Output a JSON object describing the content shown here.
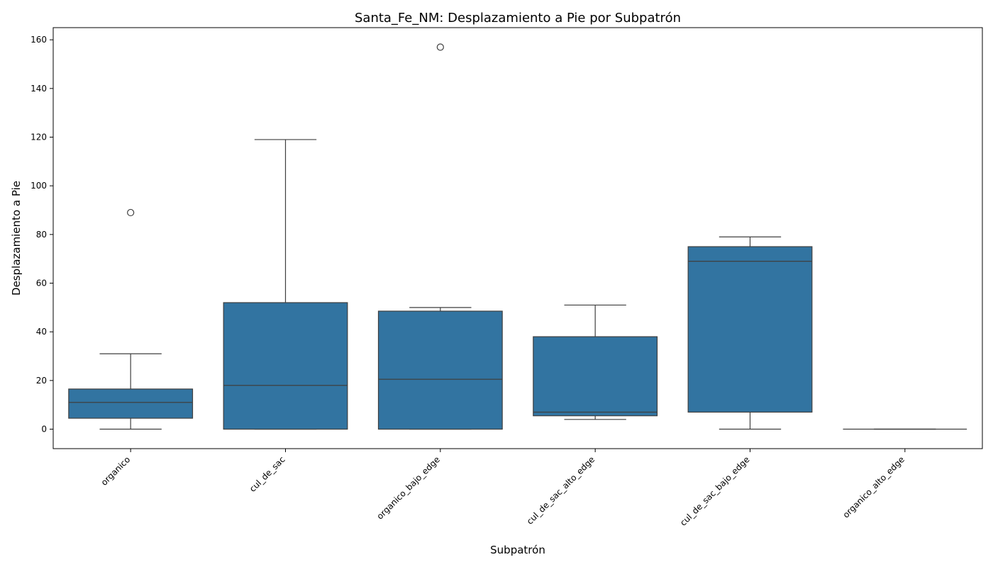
{
  "chart_data": {
    "type": "box",
    "title": "Santa_Fe_NM: Desplazamiento a Pie por Subpatrón",
    "xlabel": "Subpatrón",
    "ylabel": "Desplazamiento a Pie",
    "ylim": [
      -8,
      165
    ],
    "yticks": [
      0,
      20,
      40,
      60,
      80,
      100,
      120,
      140,
      160
    ],
    "color": "#3274a1",
    "categories": [
      "organico",
      "cul_de_sac",
      "organico_bajo_edge",
      "cul_de_sac_alto_edge",
      "cul_de_sac_bajo_edge",
      "organico_alto_edge"
    ],
    "boxes": [
      {
        "whisker_low": 0,
        "q1": 4.5,
        "median": 11,
        "q3": 16.5,
        "whisker_high": 31,
        "outliers": [
          89
        ]
      },
      {
        "whisker_low": 0,
        "q1": 0,
        "median": 18,
        "q3": 52,
        "whisker_high": 119,
        "outliers": []
      },
      {
        "whisker_low": 0,
        "q1": 0,
        "median": 20.5,
        "q3": 48.5,
        "whisker_high": 50,
        "outliers": [
          157
        ]
      },
      {
        "whisker_low": 4,
        "q1": 5.5,
        "median": 7,
        "q3": 38,
        "whisker_high": 51,
        "outliers": []
      },
      {
        "whisker_low": 0,
        "q1": 7,
        "median": 69,
        "q3": 75,
        "whisker_high": 79,
        "outliers": []
      },
      {
        "whisker_low": 0,
        "q1": 0,
        "median": 0,
        "q3": 0,
        "whisker_high": 0,
        "outliers": []
      }
    ]
  }
}
